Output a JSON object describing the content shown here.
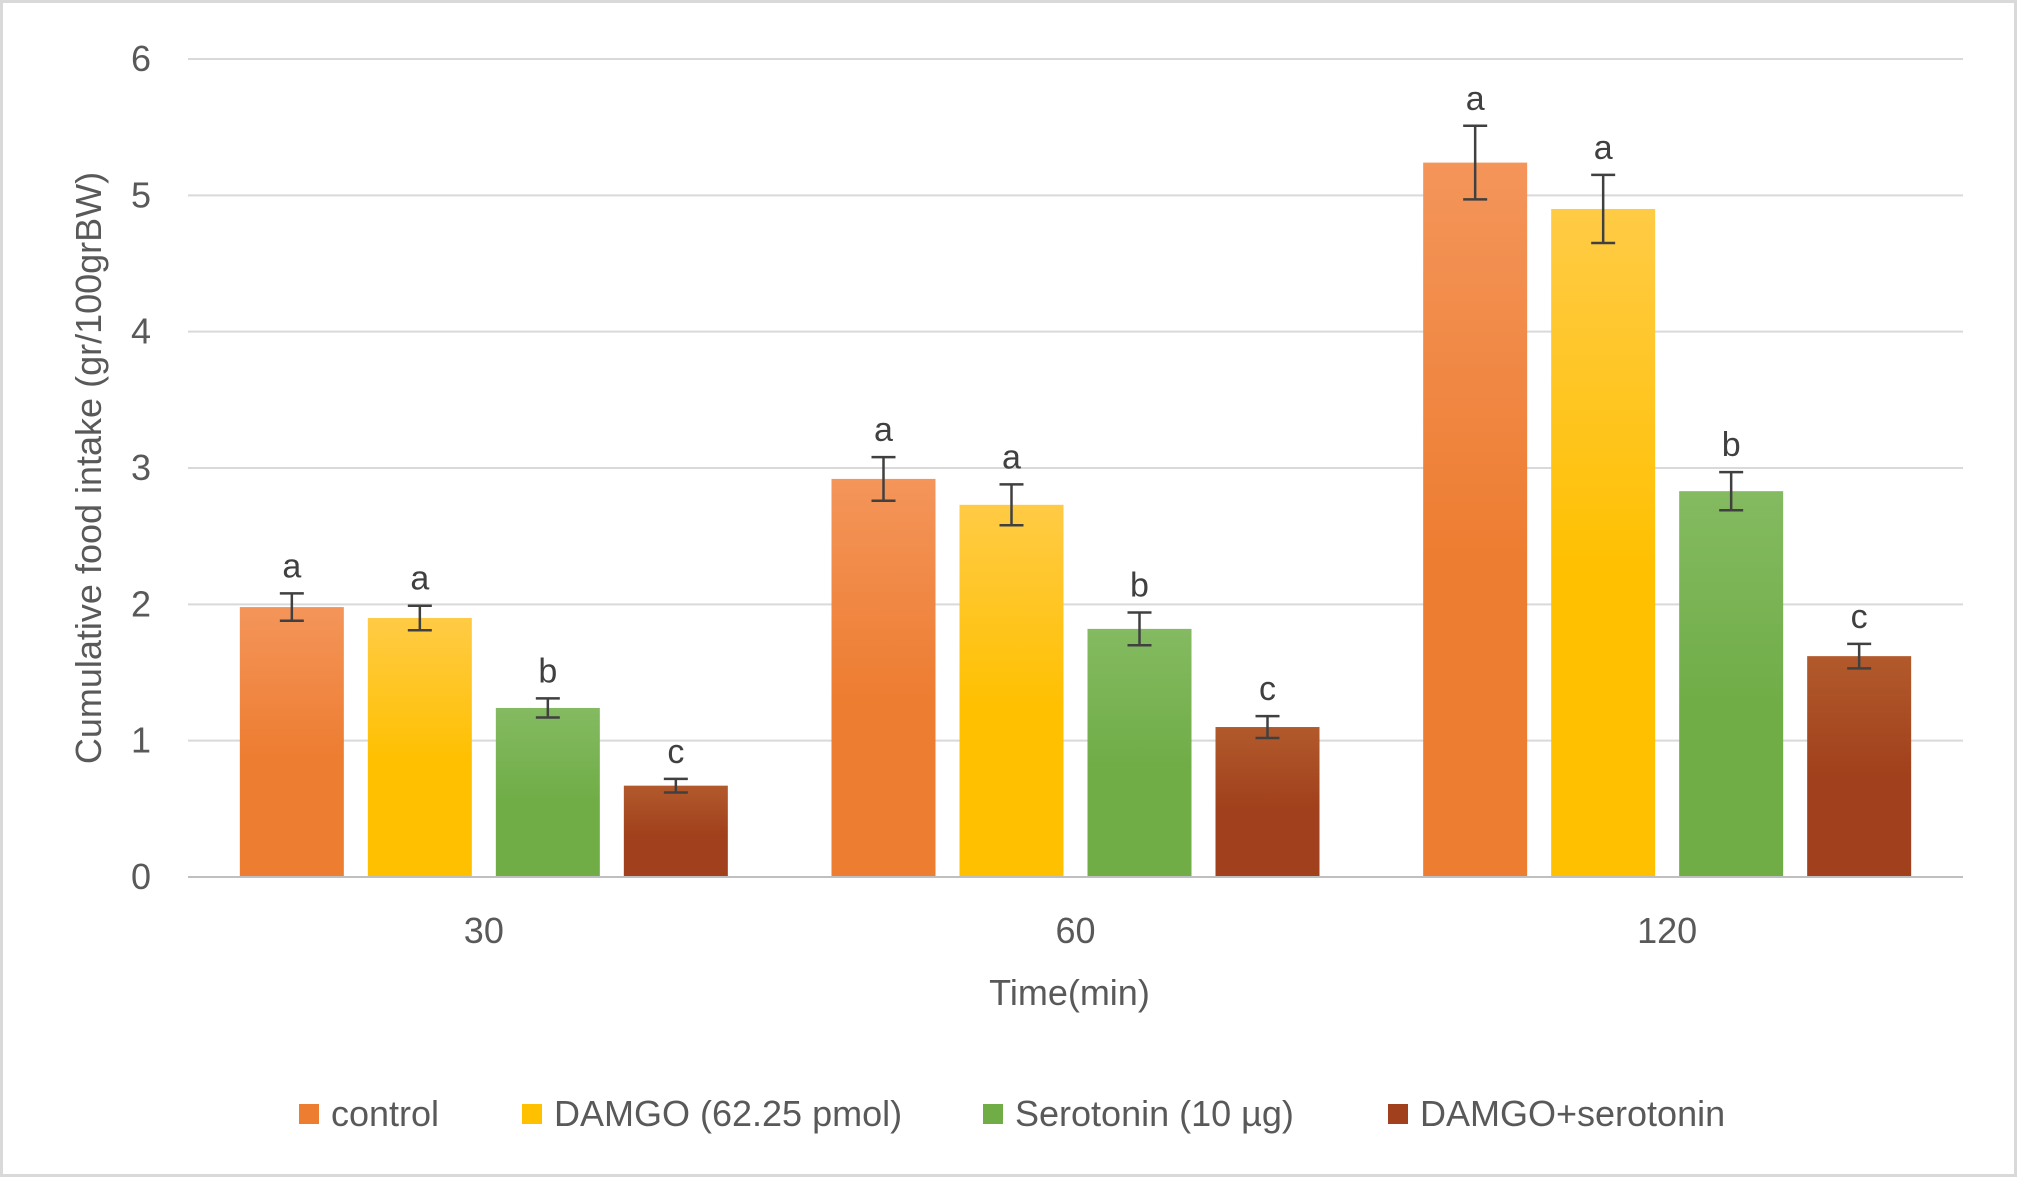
{
  "chart_data": {
    "type": "bar",
    "xlabel": "Time(min)",
    "ylabel": "Cumulative food intake (gr/100grBW)",
    "ylim": [
      0,
      6
    ],
    "yticks": [
      "0",
      "1",
      "2",
      "3",
      "4",
      "5",
      "6"
    ],
    "categories": [
      "30",
      "60",
      "120"
    ],
    "grid": true,
    "legend_position": "bottom",
    "series": [
      {
        "name": "control",
        "color": "#ED7D31",
        "color_light": "#F4955A",
        "values": [
          1.98,
          2.92,
          5.24
        ],
        "errors": [
          0.1,
          0.16,
          0.27
        ],
        "labels": [
          "a",
          "a",
          "a"
        ]
      },
      {
        "name": "DAMGO (62.25 pmol)",
        "color": "#FFC000",
        "color_light": "#FFCB45",
        "values": [
          1.9,
          2.73,
          4.9
        ],
        "errors": [
          0.09,
          0.15,
          0.25
        ],
        "labels": [
          "a",
          "a",
          "a"
        ]
      },
      {
        "name": "Serotonin (10 µg)",
        "color": "#70AD47",
        "color_light": "#84BA61",
        "values": [
          1.24,
          1.82,
          2.83
        ],
        "errors": [
          0.07,
          0.12,
          0.14
        ],
        "labels": [
          "b",
          "b",
          "b"
        ]
      },
      {
        "name": "DAMGO+serotonin",
        "color": "#A0401C",
        "color_light": "#B25A2C",
        "values": [
          0.67,
          1.1,
          1.62
        ],
        "errors": [
          0.05,
          0.08,
          0.09
        ],
        "labels": [
          "c",
          "c",
          "c"
        ]
      }
    ]
  }
}
